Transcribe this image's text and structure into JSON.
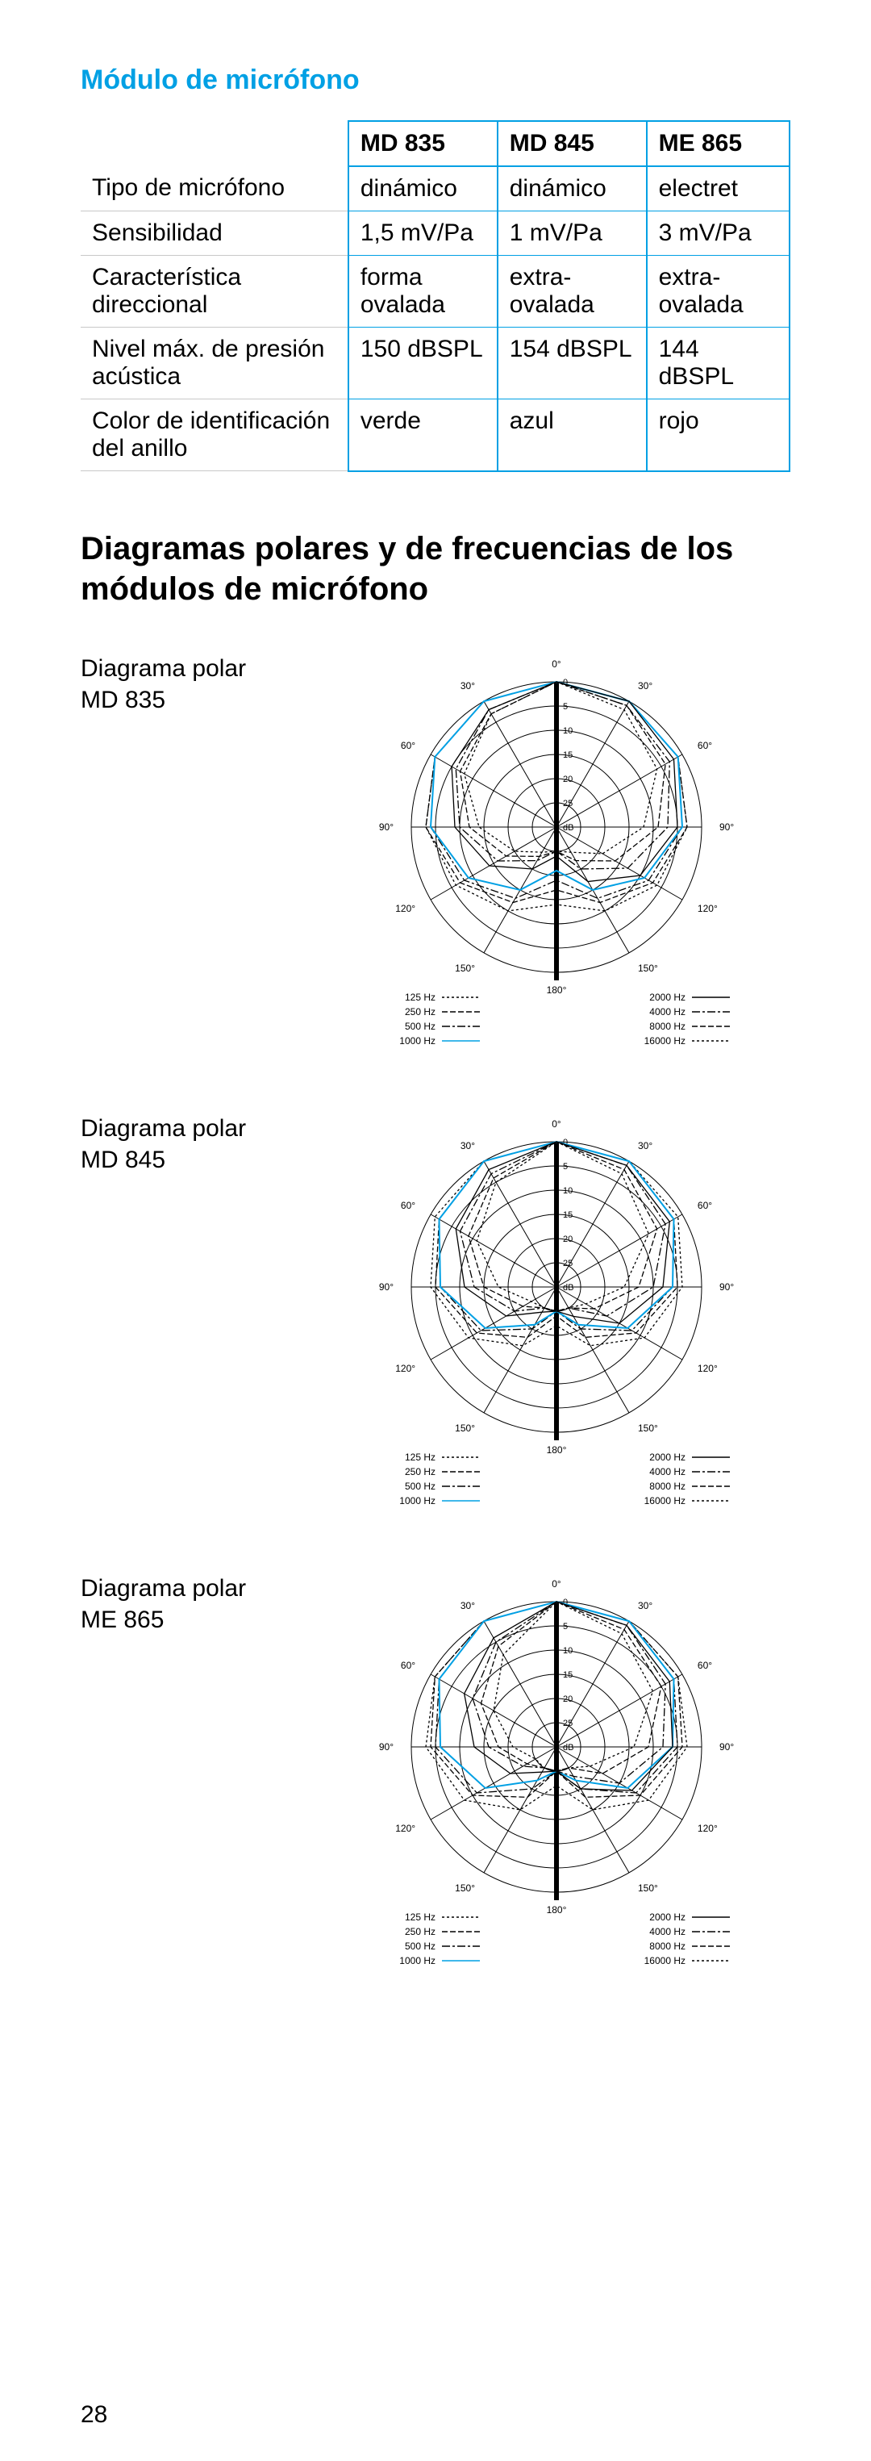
{
  "section_title": "Módulo de micrófono",
  "table": {
    "headers": [
      "",
      "MD 835",
      "MD 845",
      "ME 865"
    ],
    "rows": [
      [
        "Tipo de micrófono",
        "dinámico",
        "dinámico",
        "electret"
      ],
      [
        "Sensibilidad",
        "1,5 mV/Pa",
        "1 mV/Pa",
        "3 mV/Pa"
      ],
      [
        "Característica direccional",
        "forma ovalada",
        "extra- ovalada",
        "extra- ovalada"
      ],
      [
        "Nivel máx. de presión acústica",
        "150 dBSPL",
        "154 dBSPL",
        "144 dBSPL"
      ],
      [
        "Color de identificación del anillo",
        "verde",
        "azul",
        "rojo"
      ]
    ]
  },
  "main_heading": "Diagramas polares y de frecuencias de los módulos de micrófono",
  "diagrams": {
    "d1": {
      "label_line1": "Diagrama polar",
      "label_line2": "MD 835"
    },
    "d2": {
      "label_line1": "Diagrama polar",
      "label_line2": "MD 845"
    },
    "d3": {
      "label_line1": "Diagrama polar",
      "label_line2": "ME 865"
    }
  },
  "polar": {
    "angle_labels": [
      "0°",
      "30°",
      "60°",
      "90°",
      "120°",
      "150°",
      "180°",
      "150°",
      "120°",
      "90°",
      "60°",
      "30°"
    ],
    "db_rings": [
      0,
      5,
      10,
      15,
      20,
      25
    ],
    "db_unit": "dB",
    "legend_left": [
      {
        "label": "125 Hz",
        "dash": "3,3"
      },
      {
        "label": "250 Hz",
        "dash": "7,3"
      },
      {
        "label": "500 Hz",
        "dash": "10,3,3,3"
      },
      {
        "label": "1000 Hz",
        "dash": ""
      }
    ],
    "legend_right": [
      {
        "label": "2000 Hz",
        "dash": ""
      },
      {
        "label": "4000 Hz",
        "dash": "10,3,3,3"
      },
      {
        "label": "8000 Hz",
        "dash": "7,3"
      },
      {
        "label": "16000 Hz",
        "dash": "3,3"
      }
    ],
    "colors": {
      "grid": "#000000",
      "curve_main": "#000000",
      "curve_accent": "#00a0e4",
      "text": "#000000"
    },
    "font_size_labels": 12
  },
  "page_number": "28"
}
